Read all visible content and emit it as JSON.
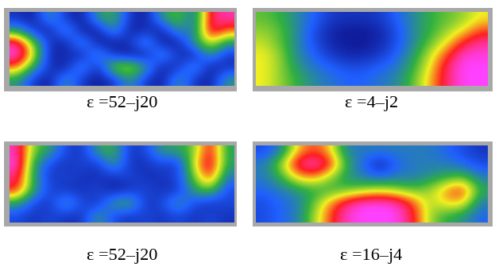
{
  "chart_data": [
    {
      "type": "heatmap",
      "title": "ε =52–j20",
      "tick_labels": false,
      "cells": [
        [
          0.2,
          0.15,
          0.4,
          0.2,
          0.15,
          0.4,
          0.45,
          0.2,
          0.15,
          0.4,
          0.5,
          0.3,
          0.8,
          0.85
        ],
        [
          0.4,
          0.2,
          0.15,
          0.4,
          0.15,
          0.15,
          0.4,
          0.15,
          0.2,
          0.15,
          0.4,
          0.3,
          0.85,
          0.7
        ],
        [
          0.85,
          0.5,
          0.2,
          0.15,
          0.4,
          0.15,
          0.15,
          0.2,
          0.4,
          0.15,
          0.15,
          0.4,
          0.6,
          0.4
        ],
        [
          0.9,
          0.6,
          0.15,
          0.2,
          0.15,
          0.4,
          0.2,
          0.15,
          0.15,
          0.4,
          0.2,
          0.15,
          0.4,
          0.2
        ],
        [
          0.7,
          0.4,
          0.2,
          0.15,
          0.4,
          0.15,
          0.55,
          0.6,
          0.4,
          0.15,
          0.2,
          0.4,
          0.15,
          0.2
        ],
        [
          0.4,
          0.2,
          0.15,
          0.4,
          0.2,
          0.15,
          0.2,
          0.4,
          0.2,
          0.15,
          0.4,
          0.2,
          0.15,
          0.4
        ]
      ]
    },
    {
      "type": "heatmap",
      "title": "ε =4–j2",
      "tick_labels": false,
      "cells": [
        [
          0.45,
          0.4,
          0.3,
          0.2,
          0.1,
          0.08,
          0.08,
          0.1,
          0.2,
          0.3,
          0.4,
          0.45,
          0.5,
          0.6
        ],
        [
          0.5,
          0.45,
          0.3,
          0.15,
          0.05,
          0.02,
          0.02,
          0.05,
          0.15,
          0.3,
          0.4,
          0.5,
          0.6,
          0.75
        ],
        [
          0.55,
          0.45,
          0.3,
          0.15,
          0.05,
          0.02,
          0.02,
          0.05,
          0.15,
          0.3,
          0.45,
          0.6,
          0.8,
          0.9
        ],
        [
          0.6,
          0.5,
          0.3,
          0.2,
          0.1,
          0.05,
          0.05,
          0.1,
          0.2,
          0.35,
          0.55,
          0.75,
          0.95,
          0.95
        ],
        [
          0.6,
          0.5,
          0.35,
          0.25,
          0.2,
          0.15,
          0.15,
          0.2,
          0.25,
          0.4,
          0.6,
          0.85,
          0.98,
          0.98
        ],
        [
          0.6,
          0.5,
          0.4,
          0.3,
          0.25,
          0.2,
          0.2,
          0.25,
          0.3,
          0.45,
          0.65,
          0.85,
          0.98,
          0.98
        ]
      ]
    },
    {
      "type": "heatmap",
      "title": "ε =52–j20",
      "tick_labels": false,
      "cells": [
        [
          0.9,
          0.5,
          0.4,
          0.2,
          0.15,
          0.4,
          0.45,
          0.15,
          0.2,
          0.4,
          0.4,
          0.5,
          0.85,
          0.4
        ],
        [
          0.95,
          0.4,
          0.2,
          0.15,
          0.2,
          0.15,
          0.4,
          0.15,
          0.15,
          0.2,
          0.15,
          0.6,
          0.9,
          0.4
        ],
        [
          0.85,
          0.4,
          0.15,
          0.2,
          0.15,
          0.15,
          0.15,
          0.2,
          0.15,
          0.15,
          0.2,
          0.5,
          0.8,
          0.3
        ],
        [
          0.8,
          0.4,
          0.2,
          0.15,
          0.15,
          0.2,
          0.1,
          0.15,
          0.2,
          0.15,
          0.15,
          0.4,
          0.5,
          0.2
        ],
        [
          0.4,
          0.2,
          0.15,
          0.4,
          0.2,
          0.15,
          0.4,
          0.45,
          0.15,
          0.2,
          0.4,
          0.2,
          0.15,
          0.2
        ],
        [
          0.2,
          0.15,
          0.2,
          0.15,
          0.15,
          0.4,
          0.2,
          0.15,
          0.2,
          0.15,
          0.2,
          0.15,
          0.2,
          0.15
        ]
      ]
    },
    {
      "type": "heatmap",
      "title": "ε =16–j4",
      "tick_labels": false,
      "cells": [
        [
          0.3,
          0.4,
          0.7,
          0.8,
          0.7,
          0.4,
          0.4,
          0.4,
          0.4,
          0.4,
          0.4,
          0.35,
          0.3,
          0.25
        ],
        [
          0.4,
          0.6,
          0.9,
          0.98,
          0.85,
          0.5,
          0.35,
          0.2,
          0.35,
          0.4,
          0.4,
          0.4,
          0.35,
          0.3
        ],
        [
          0.4,
          0.5,
          0.7,
          0.75,
          0.6,
          0.45,
          0.4,
          0.35,
          0.4,
          0.4,
          0.45,
          0.5,
          0.55,
          0.4
        ],
        [
          0.35,
          0.4,
          0.45,
          0.5,
          0.5,
          0.55,
          0.6,
          0.65,
          0.6,
          0.55,
          0.6,
          0.75,
          0.85,
          0.5
        ],
        [
          0.3,
          0.35,
          0.4,
          0.55,
          0.75,
          0.9,
          0.98,
          0.98,
          0.95,
          0.8,
          0.6,
          0.7,
          0.7,
          0.4
        ],
        [
          0.3,
          0.35,
          0.4,
          0.6,
          0.8,
          0.95,
          0.98,
          0.98,
          0.98,
          0.85,
          0.6,
          0.5,
          0.45,
          0.35
        ]
      ]
    }
  ]
}
